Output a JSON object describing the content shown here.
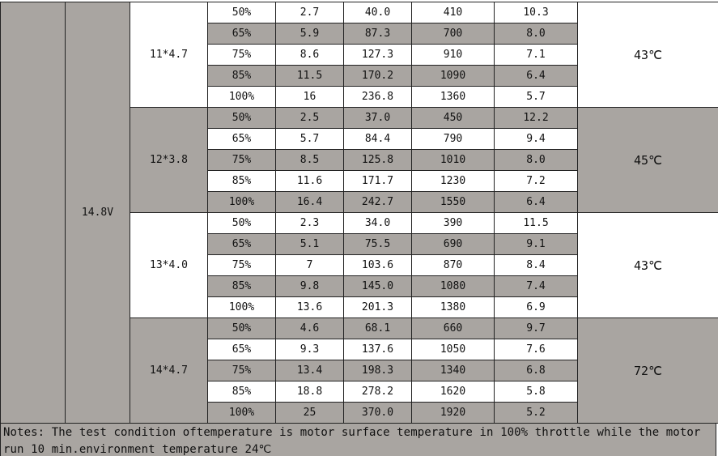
{
  "table": {
    "voltage": "14.8V",
    "groups": [
      {
        "prop": "11*4.7",
        "temp": "43℃",
        "rows": [
          [
            "50%",
            "2.7",
            "40.0",
            "410",
            "10.3"
          ],
          [
            "65%",
            "5.9",
            "87.3",
            "700",
            "8.0"
          ],
          [
            "75%",
            "8.6",
            "127.3",
            "910",
            "7.1"
          ],
          [
            "85%",
            "11.5",
            "170.2",
            "1090",
            "6.4"
          ],
          [
            "100%",
            "16",
            "236.8",
            "1360",
            "5.7"
          ]
        ]
      },
      {
        "prop": "12*3.8",
        "temp": "45℃",
        "rows": [
          [
            "50%",
            "2.5",
            "37.0",
            "450",
            "12.2"
          ],
          [
            "65%",
            "5.7",
            "84.4",
            "790",
            "9.4"
          ],
          [
            "75%",
            "8.5",
            "125.8",
            "1010",
            "8.0"
          ],
          [
            "85%",
            "11.6",
            "171.7",
            "1230",
            "7.2"
          ],
          [
            "100%",
            "16.4",
            "242.7",
            "1550",
            "6.4"
          ]
        ]
      },
      {
        "prop": "13*4.0",
        "temp": "43℃",
        "rows": [
          [
            "50%",
            "2.3",
            "34.0",
            "390",
            "11.5"
          ],
          [
            "65%",
            "5.1",
            "75.5",
            "690",
            "9.1"
          ],
          [
            "75%",
            "7",
            "103.6",
            "870",
            "8.4"
          ],
          [
            "85%",
            "9.8",
            "145.0",
            "1080",
            "7.4"
          ],
          [
            "100%",
            "13.6",
            "201.3",
            "1380",
            "6.9"
          ]
        ]
      },
      {
        "prop": "14*4.7",
        "temp": "72℃",
        "rows": [
          [
            "50%",
            "4.6",
            "68.1",
            "660",
            "9.7"
          ],
          [
            "65%",
            "9.3",
            "137.6",
            "1050",
            "7.6"
          ],
          [
            "75%",
            "13.4",
            "198.3",
            "1340",
            "6.8"
          ],
          [
            "85%",
            "18.8",
            "278.2",
            "1620",
            "5.8"
          ],
          [
            "100%",
            "25",
            "370.0",
            "1920",
            "5.2"
          ]
        ]
      }
    ],
    "notes": "Notes: The test condition oftemperature is motor surface temperature in 100% throttle while the motor run 10 min.environment temperature 24℃"
  }
}
